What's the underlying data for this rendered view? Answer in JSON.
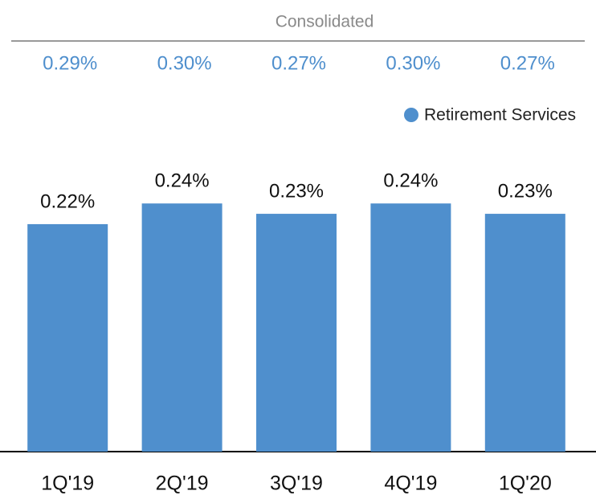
{
  "chart_data": {
    "type": "bar",
    "consolidated": {
      "title": "Consolidated",
      "values": [
        "0.29%",
        "0.30%",
        "0.27%",
        "0.30%",
        "0.27%"
      ]
    },
    "categories": [
      "1Q'19",
      "2Q'19",
      "3Q'19",
      "4Q'19",
      "1Q'20"
    ],
    "series": [
      {
        "name": "Retirement Services",
        "color": "#4f8fcd",
        "values": [
          0.22,
          0.24,
          0.23,
          0.24,
          0.23
        ],
        "value_labels": [
          "0.22%",
          "0.24%",
          "0.23%",
          "0.24%",
          "0.23%"
        ]
      }
    ],
    "ylim": [
      0,
      0.3
    ],
    "legend": "top-right"
  }
}
